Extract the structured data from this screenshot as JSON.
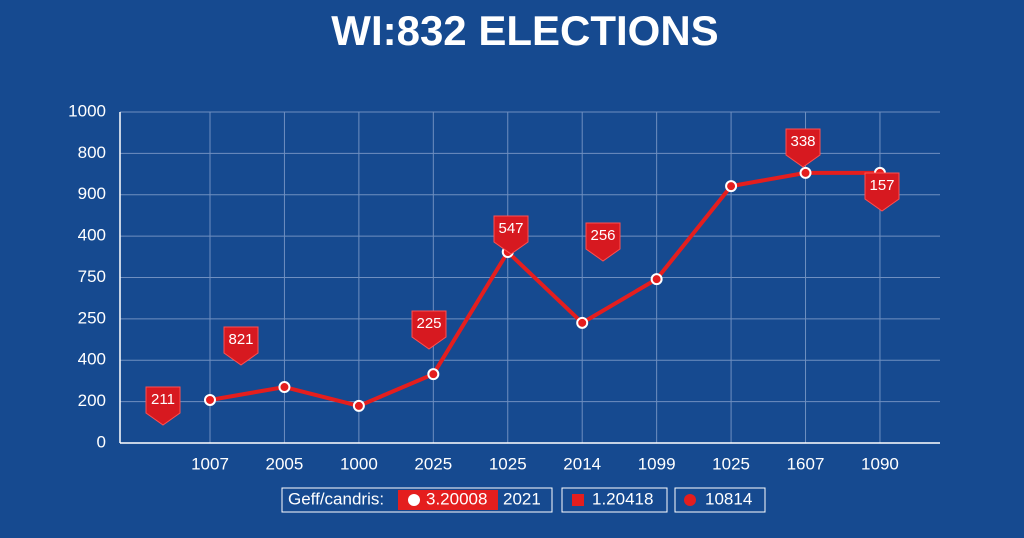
{
  "chart_data": {
    "type": "line",
    "title": "WI:832 ELECTIONS",
    "categories": [
      "1007",
      "2005",
      "1000",
      "2025",
      "1025",
      "2014",
      "1099",
      "1025",
      "1607",
      "1090"
    ],
    "series": [
      {
        "name": "3.20008",
        "color": "#e41e1e",
        "values": [
          130,
          169,
          112,
          208,
          577,
          363,
          495,
          776,
          816,
          816
        ]
      }
    ],
    "ylim": [
      0,
      1000
    ],
    "yticks": [
      0,
      {
        "value": 125,
        "label": "200"
      },
      {
        "value": 250,
        "label": "400"
      },
      {
        "value": 375,
        "label": "250"
      },
      {
        "value": 500,
        "label": "750"
      },
      {
        "value": 625,
        "label": "400"
      },
      {
        "value": 750,
        "label": "900"
      },
      {
        "value": 875,
        "label": "800"
      },
      1000
    ],
    "grid": true,
    "annotations": [
      "211",
      "821",
      "225",
      "547",
      "256",
      "338",
      "157"
    ],
    "legend_title": "Geff/candris:",
    "legend_items": [
      "2021",
      "1.20418",
      "10814"
    ]
  }
}
